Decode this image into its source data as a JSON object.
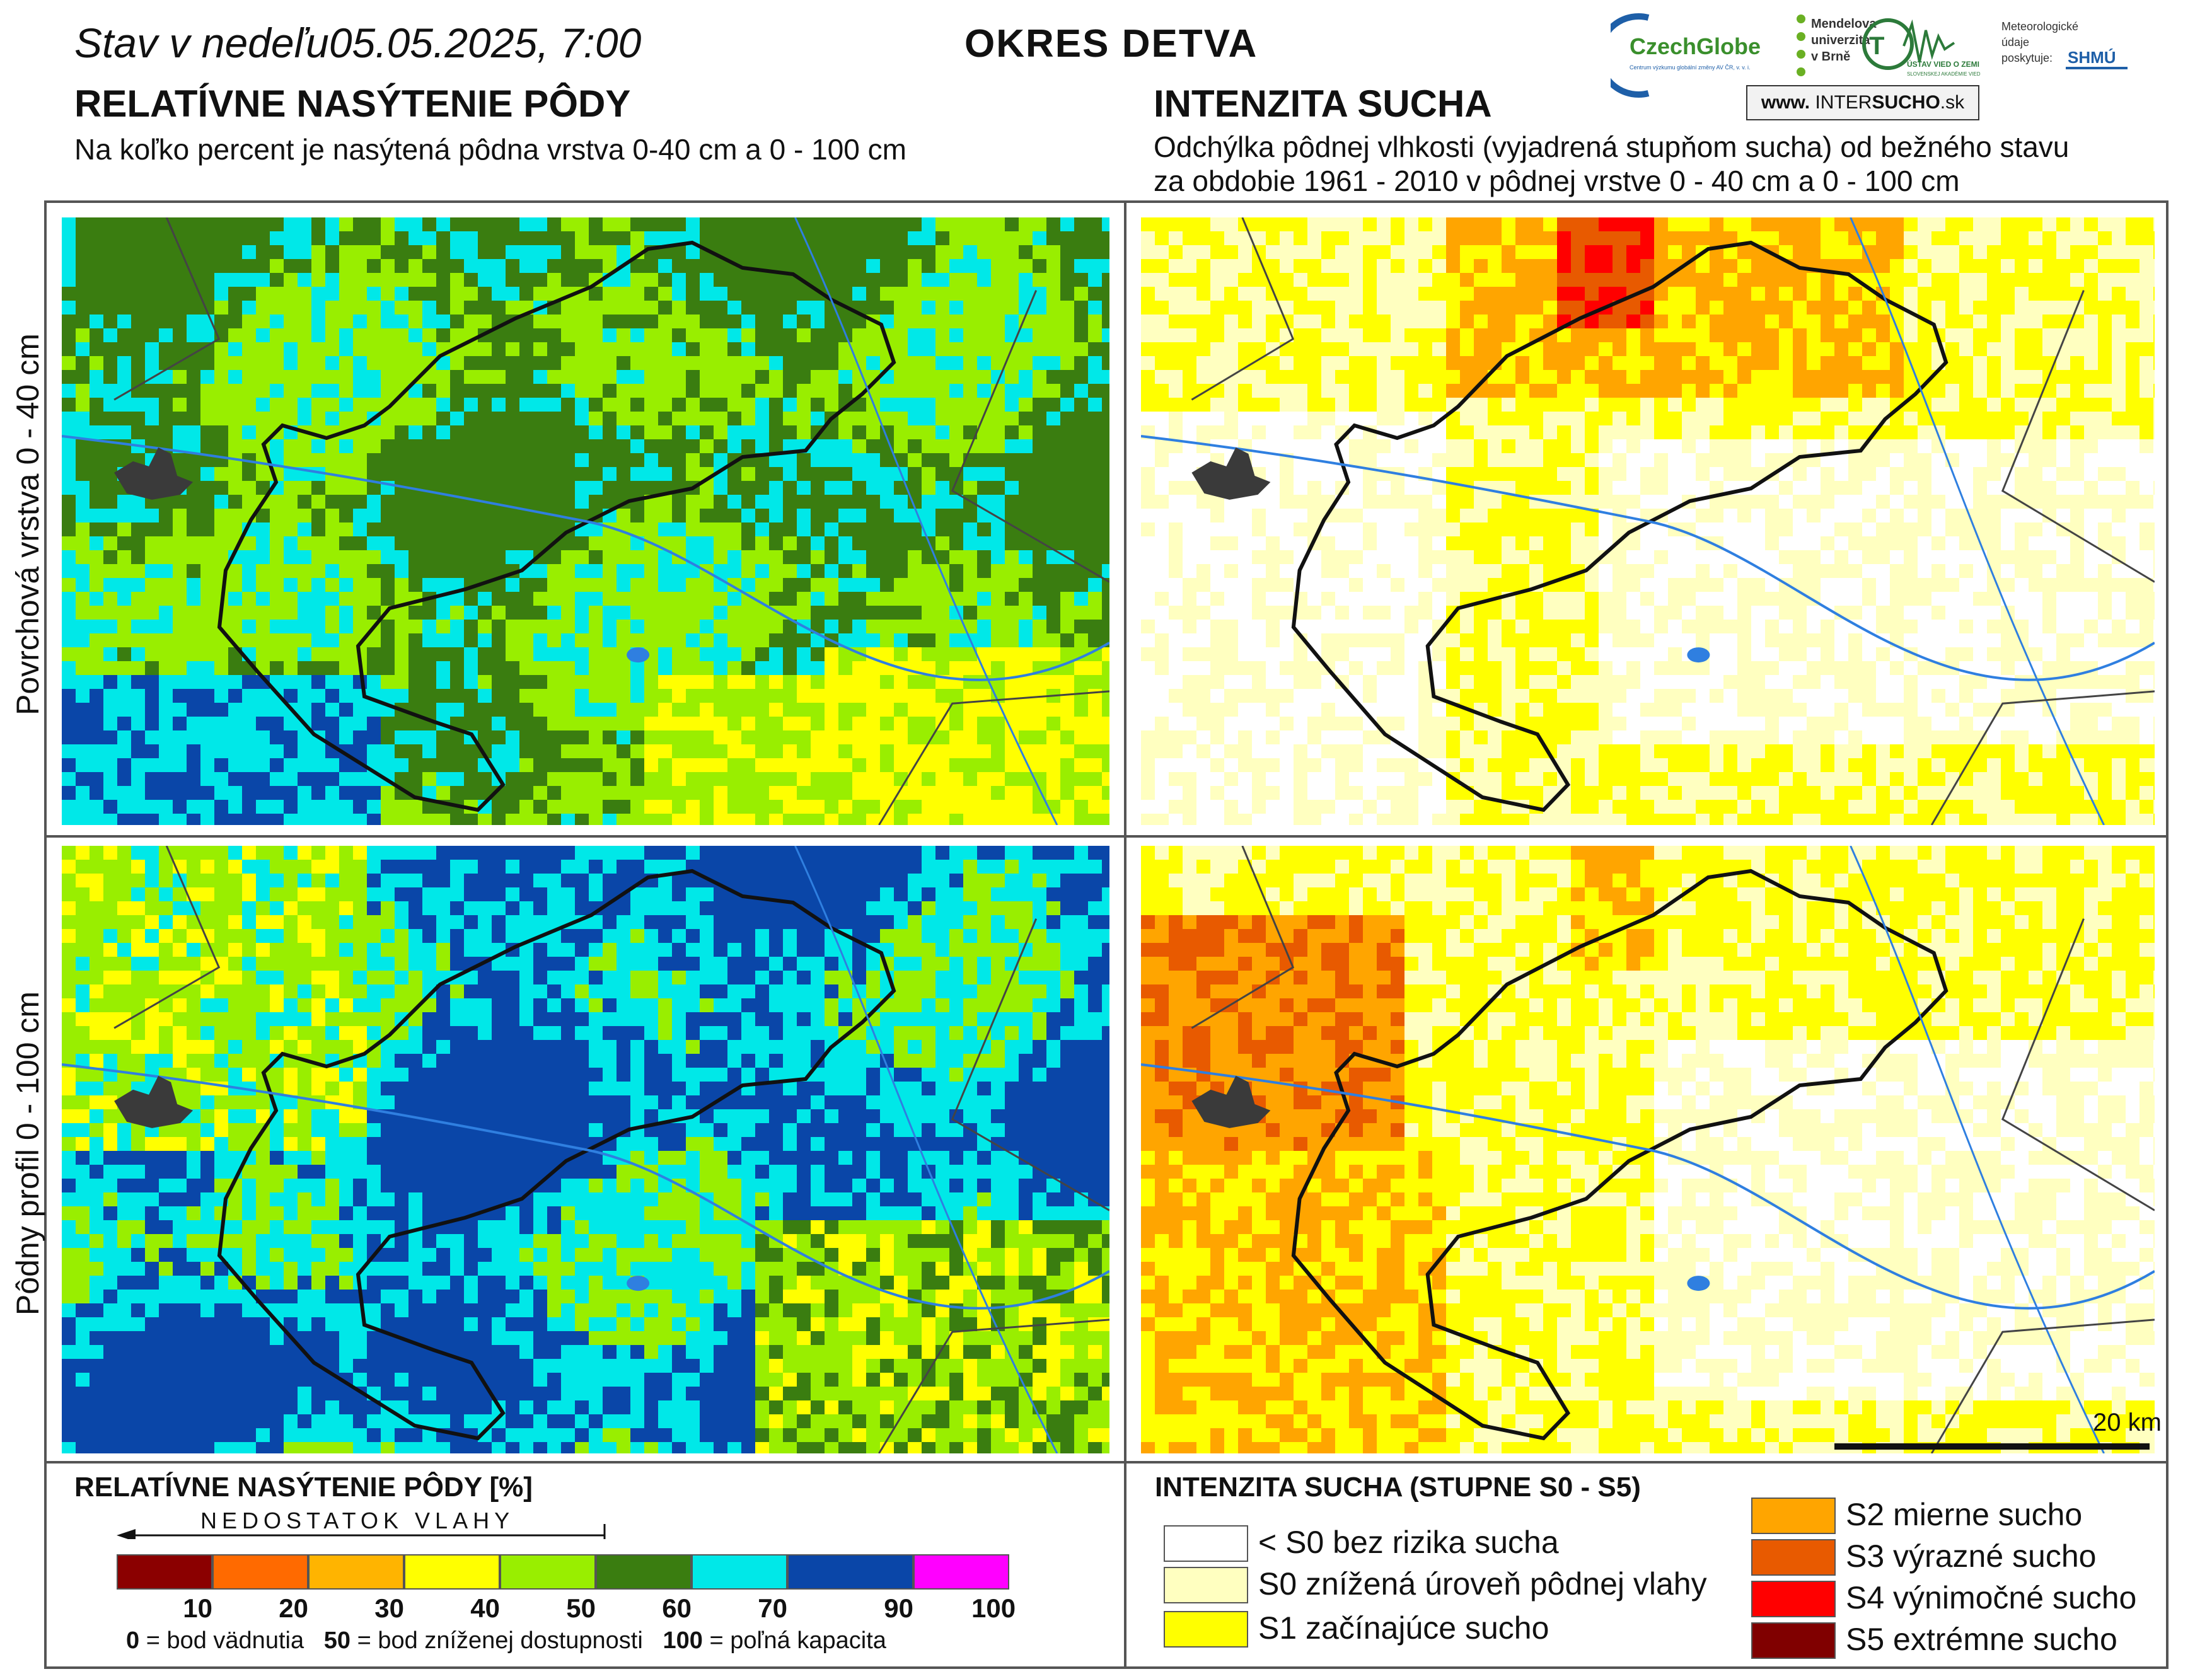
{
  "header": {
    "state_prefix": "Stav v nedeľu",
    "state_date": "05.05.2025, 7:00",
    "district": "OKRES DETVA"
  },
  "left_section": {
    "title": "RELATÍVNE NASÝTENIE PÔDY",
    "subtitle": "Na koľko percent je nasýtená pôdna vrstva 0-40 cm a 0 - 100 cm"
  },
  "right_section": {
    "title": "INTENZITA SUCHA",
    "subtitle_line1": "Odchýlka pôdnej vlhkosti (vyjadrená stupňom sucha) od bežného stavu",
    "subtitle_line2": "za obdobie 1961 - 2010 v pôdnej vrstve 0 - 40 cm a 0 - 100 cm"
  },
  "logos": {
    "czechglobe": "CzechGlobe",
    "czechglobe_small": "Centrum výzkumu globální změny AV ČR, v. v. i.",
    "mendel": "Mendelova univerzita v Brně",
    "ustav": "ÚSTAV VIED O ZEMI",
    "ustav_small": "SLOVENSKEJ AKADÉMIE VIED",
    "meteo": "Meteorologické údaje poskytuje:",
    "shmu": "SHMÚ",
    "intersucho_www": "www.",
    "intersucho_inter": "INTER",
    "intersucho_sucho": "SUCHO",
    "intersucho_sk": ".sk"
  },
  "rows": {
    "top": "Povrchová vrstva 0 - 40 cm",
    "bottom": "Pôdny profil 0 - 100 cm"
  },
  "scale": {
    "label": "20 km"
  },
  "legend_saturation": {
    "title": "RELATÍVNE NASÝTENIE PÔDY [%]",
    "arrow_label": "NEDOSTATOK VLAHY",
    "colors": [
      "#8b0000",
      "#ff6a00",
      "#ffb400",
      "#ffff00",
      "#99ee00",
      "#3a7d10",
      "#00e8e8",
      "#0a46a8",
      "#ff00ff"
    ],
    "ticks": [
      "10",
      "20",
      "30",
      "40",
      "50",
      "60",
      "70",
      "90",
      "100"
    ],
    "note0_num": "0",
    "note0_text": "= bod vädnutia",
    "note50_num": "50",
    "note50_text": "= bod zníženej dostupnosti",
    "note100_num": "100",
    "note100_text": "= poľná kapacita"
  },
  "legend_drought": {
    "title": "INTENZITA SUCHA (STUPNE S0 - S5)",
    "items": [
      {
        "label": "< S0 bez rizika sucha",
        "color": "#ffffff"
      },
      {
        "label": "S0 znížená úroveň pôdnej vlahy",
        "color": "#ffffc0"
      },
      {
        "label": "S1 začínajúce sucho",
        "color": "#ffff00"
      },
      {
        "label": "S2 mierne sucho",
        "color": "#ffa500"
      },
      {
        "label": "S3 výrazné sucho",
        "color": "#e85a00"
      },
      {
        "label": "S4 výnimočné sucho",
        "color": "#ff0000"
      },
      {
        "label": "S5 extrémne sucho",
        "color": "#800000"
      }
    ]
  }
}
